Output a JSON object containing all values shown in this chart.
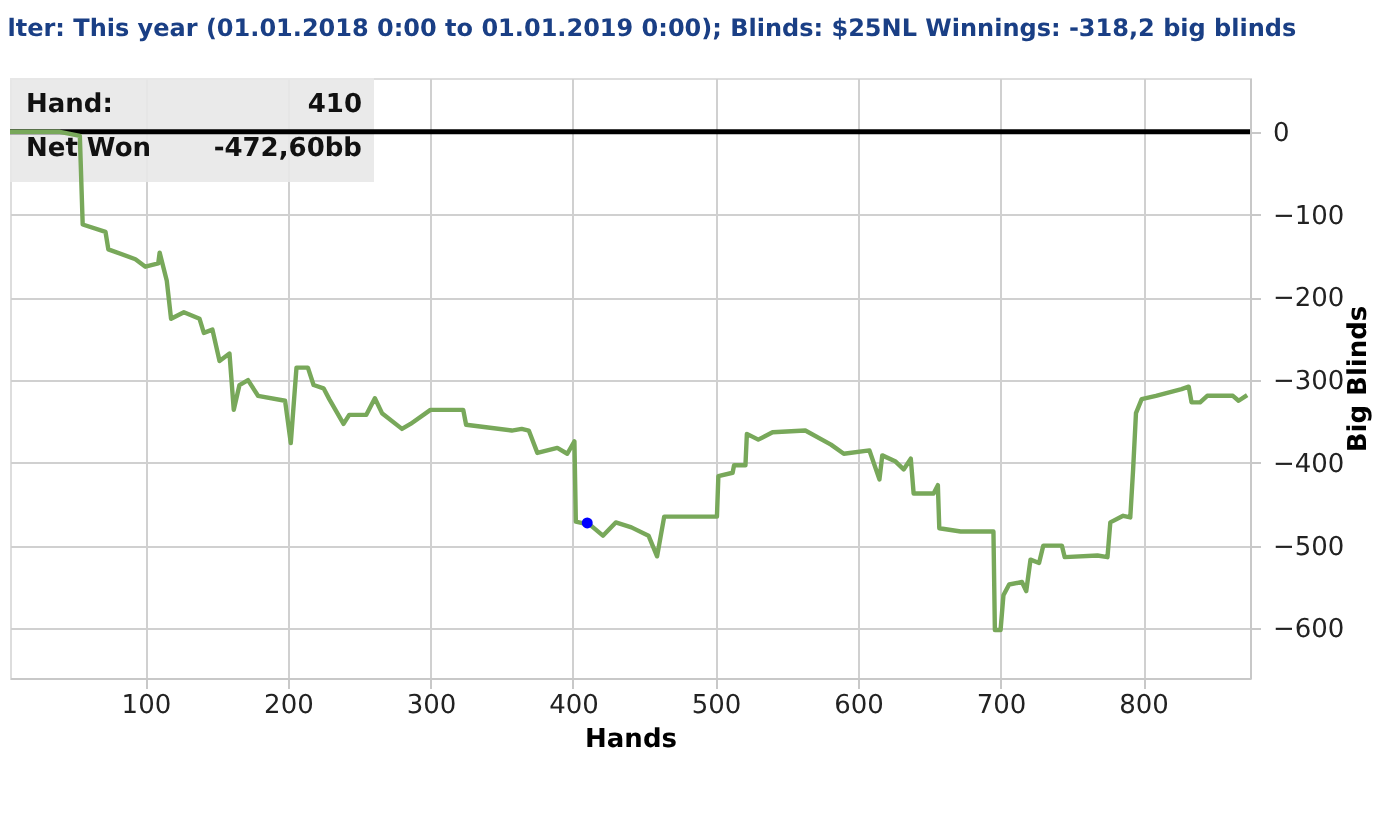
{
  "chart_data": {
    "type": "line",
    "title": "lter: This year (01.01.2018 0:00 to 01.01.2019 0:00); Blinds: $25NL Winnings: -318,2 big blinds",
    "xlabel": "Hands",
    "ylabel": "Big Blinds",
    "xlim": [
      5,
      875
    ],
    "ylim": [
      -660,
      65
    ],
    "xticks": [
      100,
      200,
      300,
      400,
      500,
      600,
      700,
      800
    ],
    "yticks": [
      0,
      -100,
      -200,
      -300,
      -400,
      -500,
      -600
    ],
    "grid": true,
    "ref_lines": [
      {
        "axis": "y",
        "value": 0,
        "color": "#000000"
      }
    ],
    "annotations": [
      "Hand:",
      "410",
      "Net Won",
      "-472,60bb"
    ],
    "series": [
      {
        "type": "line",
        "color": "#78a85a",
        "x": [
          5,
          40,
          54,
          56,
          72,
          74,
          93,
          100,
          109,
          110,
          115,
          118,
          127,
          138,
          141,
          147,
          152,
          159,
          162,
          166,
          172,
          179,
          198,
          202,
          206,
          214,
          218,
          225,
          229,
          239,
          243,
          255,
          261,
          266,
          280,
          286,
          300,
          323,
          325,
          339,
          357,
          364,
          369,
          375,
          389,
          396,
          401,
          402,
          412,
          421,
          430,
          441,
          453,
          459,
          464,
          476,
          501,
          502,
          512,
          513,
          521,
          522,
          530,
          540,
          563,
          581,
          590,
          608,
          615,
          617,
          626,
          632,
          637,
          639,
          653,
          656,
          657,
          672,
          695,
          696,
          700,
          702,
          706,
          715,
          718,
          721,
          727,
          730,
          743,
          745,
          768,
          775,
          777,
          786,
          791,
          793,
          795,
          799,
          809,
          827,
          832,
          834,
          840,
          845,
          863,
          867,
          873
        ],
        "values": [
          0,
          0,
          -5,
          -112,
          -121,
          -142,
          -154,
          -163,
          -159,
          -146,
          -180,
          -226,
          -218,
          -226,
          -243,
          -239,
          -277,
          -268,
          -336,
          -306,
          -300,
          -319,
          -325,
          -376,
          -285,
          -285,
          -306,
          -310,
          -323,
          -353,
          -342,
          -342,
          -322,
          -340,
          -359,
          -353,
          -336,
          -336,
          -354,
          -357,
          -361,
          -359,
          -361,
          -388,
          -382,
          -389,
          -374,
          -471,
          -475,
          -488,
          -472,
          -478,
          -488,
          -513,
          -465,
          -465,
          -465,
          -416,
          -412,
          -403,
          -403,
          -365,
          -372,
          -363,
          -361,
          -378,
          -389,
          -385,
          -420,
          -391,
          -398,
          -408,
          -395,
          -437,
          -437,
          -427,
          -479,
          -483,
          -483,
          -602,
          -602,
          -560,
          -547,
          -544,
          -555,
          -517,
          -521,
          -500,
          -500,
          -514,
          -512,
          -514,
          -472,
          -464,
          -466,
          -408,
          -340,
          -323,
          -319,
          -311,
          -308,
          -327,
          -327,
          -319,
          -319,
          -325,
          -318.2
        ]
      },
      {
        "type": "scatter",
        "color": "#0000ff",
        "marker": "circle",
        "x": [
          410
        ],
        "values": [
          -472.6
        ]
      }
    ]
  }
}
